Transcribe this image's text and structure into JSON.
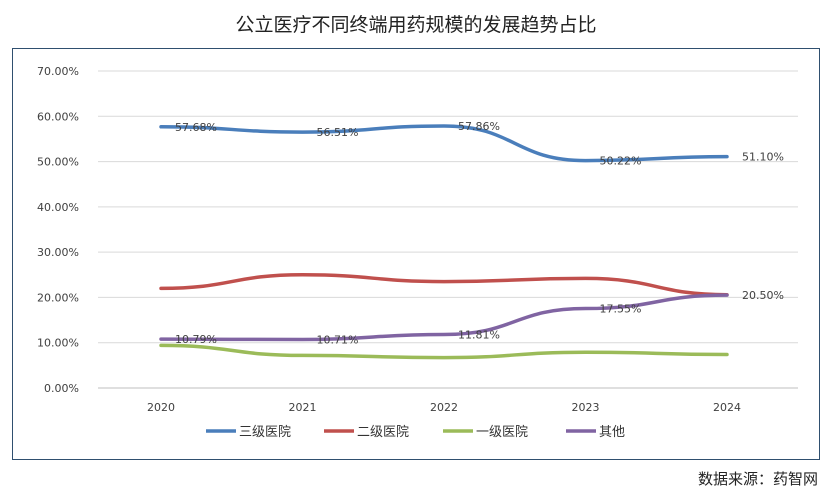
{
  "title": "公立医疗不同终端用药规模的发展趋势占比",
  "source": "数据来源：药智网",
  "chart_data": {
    "type": "line",
    "x": [
      "2020",
      "2021",
      "2022",
      "2023",
      "2024"
    ],
    "ylim": [
      0,
      70
    ],
    "yticks": [
      0,
      10,
      20,
      30,
      40,
      50,
      60,
      70
    ],
    "ytick_labels": [
      "0.00%",
      "10.00%",
      "20.00%",
      "30.00%",
      "40.00%",
      "50.00%",
      "60.00%",
      "70.00%"
    ],
    "grid": true,
    "legend_position": "bottom",
    "series": [
      {
        "name": "三级医院",
        "color": "#4a7ebb",
        "values": [
          57.68,
          56.51,
          57.86,
          50.22,
          51.1
        ],
        "labels": [
          "57.68%",
          "56.51%",
          "57.86%",
          "50.22%",
          "51.10%"
        ]
      },
      {
        "name": "二级医院",
        "color": "#c0504d",
        "values": [
          22.0,
          25.0,
          23.5,
          24.2,
          20.6
        ],
        "labels": [
          "",
          "",
          "",
          "",
          ""
        ]
      },
      {
        "name": "一级医院",
        "color": "#9bbb59",
        "values": [
          9.4,
          7.2,
          6.7,
          7.9,
          7.4
        ],
        "labels": [
          "",
          "",
          "",
          "",
          ""
        ]
      },
      {
        "name": "其他",
        "color": "#8064a2",
        "values": [
          10.79,
          10.71,
          11.81,
          17.55,
          20.5
        ],
        "labels": [
          "10.79%",
          "10.71%",
          "11.81%",
          "17.55%",
          "20.50%"
        ]
      }
    ]
  }
}
